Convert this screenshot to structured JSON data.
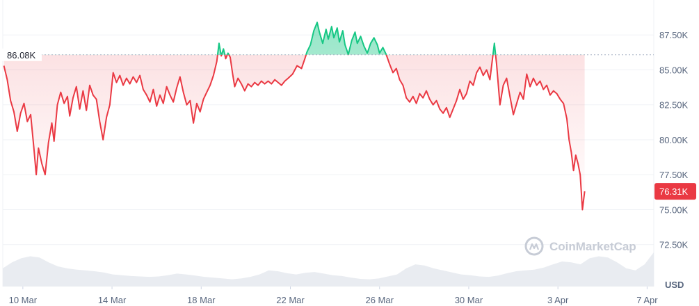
{
  "chart_data": {
    "type": "line",
    "unit_label": "USD",
    "reference_label": "86.08K",
    "reference_value": 86.08,
    "current_price_label": "76.31K",
    "current_price_value": 76.31,
    "watermark": "CoinMarketCap",
    "y_ticks": [
      "87.50K",
      "85.00K",
      "82.50K",
      "80.00K",
      "77.50K",
      "75.00K",
      "72.50K"
    ],
    "y_tick_values": [
      87.5,
      85.0,
      82.5,
      80.0,
      77.5,
      75.0,
      72.5
    ],
    "ylim": [
      69.5,
      90.0
    ],
    "x_ticks": [
      "10 Mar",
      "14 Mar",
      "18 Mar",
      "22 Mar",
      "26 Mar",
      "30 Mar",
      "3 Apr",
      "7 Apr"
    ],
    "x_tick_days": [
      0,
      4,
      8,
      12,
      16,
      20,
      24,
      28
    ],
    "x_start": "2025-03-09",
    "xlim": [
      -0.9,
      28.3
    ],
    "colors": {
      "up": "#16c784",
      "down": "#ea3943",
      "grid": "#eff2f5",
      "volume": "#e9ecf1"
    },
    "series": [
      {
        "values": [
          [
            -0.85,
            85.3
          ],
          [
            -0.7,
            84.3
          ],
          [
            -0.55,
            82.8
          ],
          [
            -0.4,
            82.0
          ],
          [
            -0.25,
            80.6
          ],
          [
            -0.1,
            81.9
          ],
          [
            0.05,
            82.6
          ],
          [
            0.2,
            81.3
          ],
          [
            0.35,
            81.8
          ],
          [
            0.5,
            79.3
          ],
          [
            0.6,
            77.5
          ],
          [
            0.7,
            79.4
          ],
          [
            0.85,
            78.3
          ],
          [
            1.0,
            77.5
          ],
          [
            1.15,
            79.8
          ],
          [
            1.3,
            81.2
          ],
          [
            1.4,
            79.9
          ],
          [
            1.55,
            82.5
          ],
          [
            1.7,
            83.4
          ],
          [
            1.85,
            82.6
          ],
          [
            2.0,
            83.1
          ],
          [
            2.1,
            81.7
          ],
          [
            2.25,
            83.0
          ],
          [
            2.4,
            83.8
          ],
          [
            2.55,
            82.2
          ],
          [
            2.7,
            83.5
          ],
          [
            2.85,
            82.1
          ],
          [
            3.0,
            83.9
          ],
          [
            3.15,
            83.2
          ],
          [
            3.3,
            82.9
          ],
          [
            3.45,
            81.3
          ],
          [
            3.6,
            80.0
          ],
          [
            3.75,
            81.6
          ],
          [
            3.9,
            82.5
          ],
          [
            4.05,
            84.8
          ],
          [
            4.2,
            84.1
          ],
          [
            4.35,
            84.6
          ],
          [
            4.5,
            83.9
          ],
          [
            4.65,
            84.4
          ],
          [
            4.8,
            84.0
          ],
          [
            4.95,
            84.5
          ],
          [
            5.1,
            84.1
          ],
          [
            5.25,
            84.6
          ],
          [
            5.4,
            83.6
          ],
          [
            5.55,
            83.2
          ],
          [
            5.7,
            82.7
          ],
          [
            5.85,
            83.6
          ],
          [
            6.0,
            82.4
          ],
          [
            6.15,
            83.2
          ],
          [
            6.3,
            82.6
          ],
          [
            6.45,
            83.8
          ],
          [
            6.6,
            83.2
          ],
          [
            6.75,
            82.7
          ],
          [
            6.9,
            83.7
          ],
          [
            7.05,
            84.5
          ],
          [
            7.2,
            83.4
          ],
          [
            7.35,
            82.5
          ],
          [
            7.5,
            82.8
          ],
          [
            7.65,
            81.2
          ],
          [
            7.8,
            82.6
          ],
          [
            7.95,
            82.0
          ],
          [
            8.1,
            82.9
          ],
          [
            8.25,
            83.4
          ],
          [
            8.4,
            83.9
          ],
          [
            8.55,
            84.6
          ],
          [
            8.7,
            85.6
          ],
          [
            8.8,
            86.9
          ],
          [
            8.9,
            86.0
          ],
          [
            9.0,
            86.5
          ],
          [
            9.1,
            85.8
          ],
          [
            9.2,
            86.2
          ],
          [
            9.3,
            85.9
          ],
          [
            9.4,
            84.8
          ],
          [
            9.5,
            83.8
          ],
          [
            9.65,
            84.4
          ],
          [
            9.8,
            84.0
          ],
          [
            9.95,
            83.5
          ],
          [
            10.1,
            84.0
          ],
          [
            10.25,
            83.8
          ],
          [
            10.4,
            84.1
          ],
          [
            10.55,
            83.9
          ],
          [
            10.7,
            84.2
          ],
          [
            10.85,
            84.0
          ],
          [
            11.0,
            84.2
          ],
          [
            11.15,
            84.0
          ],
          [
            11.3,
            84.3
          ],
          [
            11.45,
            84.1
          ],
          [
            11.6,
            83.9
          ],
          [
            11.75,
            84.2
          ],
          [
            11.9,
            84.4
          ],
          [
            12.1,
            84.7
          ],
          [
            12.3,
            85.3
          ],
          [
            12.5,
            85.1
          ],
          [
            12.65,
            85.8
          ],
          [
            12.75,
            86.3
          ],
          [
            12.9,
            86.8
          ],
          [
            13.05,
            87.8
          ],
          [
            13.2,
            88.4
          ],
          [
            13.3,
            87.7
          ],
          [
            13.45,
            86.9
          ],
          [
            13.6,
            87.9
          ],
          [
            13.7,
            87.2
          ],
          [
            13.85,
            88.1
          ],
          [
            13.95,
            87.3
          ],
          [
            14.1,
            88.0
          ],
          [
            14.2,
            87.0
          ],
          [
            14.35,
            87.8
          ],
          [
            14.45,
            86.8
          ],
          [
            14.6,
            86.1
          ],
          [
            14.75,
            87.1
          ],
          [
            14.9,
            87.7
          ],
          [
            15.0,
            86.9
          ],
          [
            15.15,
            87.4
          ],
          [
            15.3,
            86.7
          ],
          [
            15.45,
            86.2
          ],
          [
            15.6,
            86.9
          ],
          [
            15.75,
            87.3
          ],
          [
            15.9,
            86.8
          ],
          [
            16.0,
            86.2
          ],
          [
            16.15,
            86.6
          ],
          [
            16.3,
            86.1
          ],
          [
            16.45,
            85.4
          ],
          [
            16.6,
            84.8
          ],
          [
            16.75,
            85.1
          ],
          [
            16.9,
            84.3
          ],
          [
            17.05,
            83.9
          ],
          [
            17.2,
            83.0
          ],
          [
            17.35,
            82.7
          ],
          [
            17.5,
            83.1
          ],
          [
            17.65,
            82.6
          ],
          [
            17.8,
            83.3
          ],
          [
            17.95,
            83.0
          ],
          [
            18.1,
            83.5
          ],
          [
            18.25,
            82.9
          ],
          [
            18.4,
            82.5
          ],
          [
            18.55,
            82.8
          ],
          [
            18.7,
            82.2
          ],
          [
            18.85,
            81.9
          ],
          [
            19.0,
            82.3
          ],
          [
            19.15,
            81.6
          ],
          [
            19.3,
            82.2
          ],
          [
            19.45,
            82.8
          ],
          [
            19.6,
            83.6
          ],
          [
            19.75,
            82.9
          ],
          [
            19.9,
            83.3
          ],
          [
            20.05,
            84.2
          ],
          [
            20.2,
            83.9
          ],
          [
            20.35,
            84.8
          ],
          [
            20.5,
            85.2
          ],
          [
            20.65,
            84.6
          ],
          [
            20.8,
            85.0
          ],
          [
            20.95,
            84.3
          ],
          [
            21.05,
            85.6
          ],
          [
            21.15,
            86.9
          ],
          [
            21.25,
            85.4
          ],
          [
            21.4,
            82.5
          ],
          [
            21.55,
            83.9
          ],
          [
            21.7,
            84.4
          ],
          [
            21.85,
            83.1
          ],
          [
            22.0,
            81.8
          ],
          [
            22.15,
            82.6
          ],
          [
            22.3,
            83.4
          ],
          [
            22.45,
            82.9
          ],
          [
            22.6,
            84.7
          ],
          [
            22.75,
            83.8
          ],
          [
            22.9,
            84.4
          ],
          [
            23.05,
            83.9
          ],
          [
            23.2,
            84.2
          ],
          [
            23.35,
            83.6
          ],
          [
            23.5,
            83.9
          ],
          [
            23.65,
            83.2
          ],
          [
            23.8,
            83.5
          ],
          [
            23.95,
            83.3
          ],
          [
            24.1,
            82.9
          ],
          [
            24.25,
            82.6
          ],
          [
            24.4,
            81.5
          ],
          [
            24.5,
            80.0
          ],
          [
            24.6,
            79.1
          ],
          [
            24.7,
            77.8
          ],
          [
            24.8,
            78.9
          ],
          [
            24.9,
            78.3
          ],
          [
            25.0,
            77.5
          ],
          [
            25.1,
            75.0
          ],
          [
            25.2,
            76.31
          ]
        ]
      }
    ],
    "volume": [
      0.45,
      0.6,
      0.7,
      0.75,
      0.72,
      0.6,
      0.5,
      0.45,
      0.42,
      0.4,
      0.38,
      0.35,
      0.3,
      0.28,
      0.26,
      0.25,
      0.24,
      0.25,
      0.28,
      0.32,
      0.3,
      0.27,
      0.24,
      0.22,
      0.2,
      0.18,
      0.2,
      0.24,
      0.3,
      0.4,
      0.38,
      0.33,
      0.3,
      0.34,
      0.36,
      0.32,
      0.28,
      0.26,
      0.22,
      0.19,
      0.18,
      0.2,
      0.25,
      0.3,
      0.45,
      0.55,
      0.52,
      0.45,
      0.4,
      0.35,
      0.3,
      0.28,
      0.25,
      0.24,
      0.27,
      0.33,
      0.38,
      0.4,
      0.42,
      0.47,
      0.55,
      0.62,
      0.6,
      0.55,
      0.7,
      0.75,
      0.72,
      0.6,
      0.45,
      0.4,
      0.55,
      0.85
    ]
  }
}
